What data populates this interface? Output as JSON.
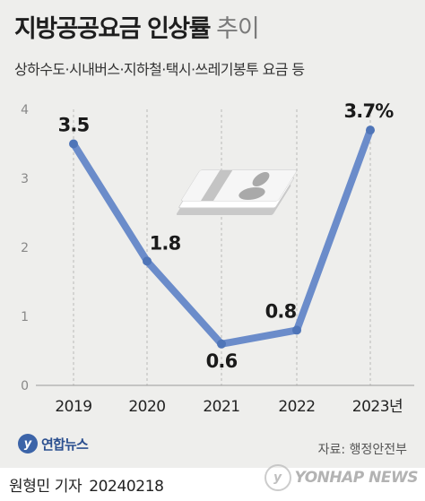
{
  "header": {
    "title": "지방공공요금 인상률",
    "title_suffix": "추이",
    "subtitle": "상하수도·시내버스·지하철·택시·쓰레기봉투 요금 등"
  },
  "chart_data": {
    "type": "line",
    "title": "지방공공요금 인상률 추이",
    "categories": [
      "2019",
      "2020",
      "2021",
      "2022",
      "2023년"
    ],
    "series": [
      {
        "values": [
          3.5,
          1.8,
          0.6,
          0.8,
          3.7
        ]
      }
    ],
    "data_labels": [
      "3.5",
      "1.8",
      "0.6",
      "0.8",
      "3.7%"
    ],
    "y_ticks": [
      0,
      1,
      2,
      3,
      4
    ],
    "ylim": [
      0,
      4
    ],
    "xlabel": "",
    "ylabel": "",
    "grid": true,
    "grid_style": "dashed-vertical",
    "line_color": "#6b8cca",
    "marker_color": "#4f75b8"
  },
  "decoration": {
    "icon": "banknote-icon"
  },
  "footer": {
    "logo_text": "연합뉴스",
    "source": "자료: 행정안전부",
    "byline": "원형민 기자",
    "date": "20240218",
    "watermark": "YONHAP NEWS"
  }
}
